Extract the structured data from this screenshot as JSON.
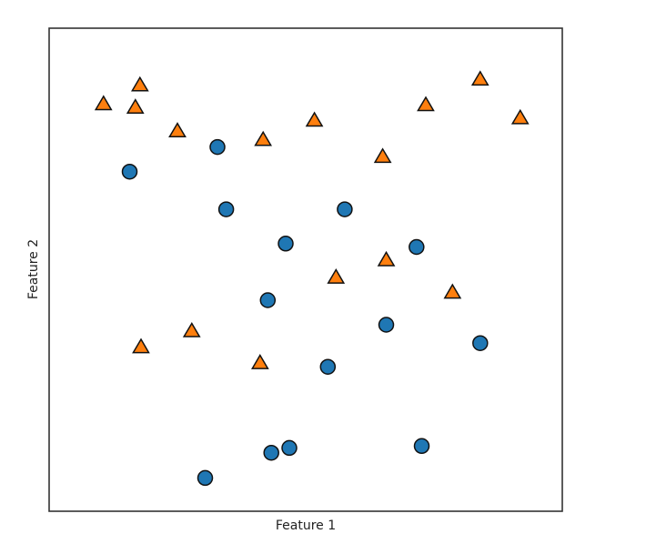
{
  "chart_data": {
    "type": "scatter",
    "xlabel": "Feature 1",
    "ylabel": "Feature 2",
    "xlim": [
      0,
      100
    ],
    "ylim": [
      0,
      100
    ],
    "grid": false,
    "show_ticks": false,
    "series": [
      {
        "marker": "circle",
        "color": "#1f77b4",
        "points": [
          {
            "x": 15.7,
            "y": 70.3
          },
          {
            "x": 32.8,
            "y": 75.4
          },
          {
            "x": 34.5,
            "y": 62.5
          },
          {
            "x": 46.1,
            "y": 55.4
          },
          {
            "x": 57.6,
            "y": 62.5
          },
          {
            "x": 71.6,
            "y": 54.7
          },
          {
            "x": 42.6,
            "y": 43.7
          },
          {
            "x": 65.7,
            "y": 38.6
          },
          {
            "x": 84.0,
            "y": 34.8
          },
          {
            "x": 54.3,
            "y": 29.9
          },
          {
            "x": 43.3,
            "y": 12.1
          },
          {
            "x": 46.8,
            "y": 13.1
          },
          {
            "x": 72.6,
            "y": 13.5
          },
          {
            "x": 30.4,
            "y": 6.9
          }
        ]
      },
      {
        "marker": "triangle",
        "color": "#ff7f0e",
        "points": [
          {
            "x": 10.6,
            "y": 84.2
          },
          {
            "x": 17.7,
            "y": 88.1
          },
          {
            "x": 16.8,
            "y": 83.5
          },
          {
            "x": 25.0,
            "y": 78.6
          },
          {
            "x": 41.7,
            "y": 76.8
          },
          {
            "x": 51.7,
            "y": 80.8
          },
          {
            "x": 73.4,
            "y": 84.0
          },
          {
            "x": 84.0,
            "y": 89.3
          },
          {
            "x": 91.8,
            "y": 81.3
          },
          {
            "x": 65.0,
            "y": 73.3
          },
          {
            "x": 65.7,
            "y": 51.9
          },
          {
            "x": 55.9,
            "y": 48.3
          },
          {
            "x": 78.6,
            "y": 45.2
          },
          {
            "x": 27.8,
            "y": 37.2
          },
          {
            "x": 17.9,
            "y": 33.9
          },
          {
            "x": 41.1,
            "y": 30.6
          }
        ]
      }
    ]
  }
}
